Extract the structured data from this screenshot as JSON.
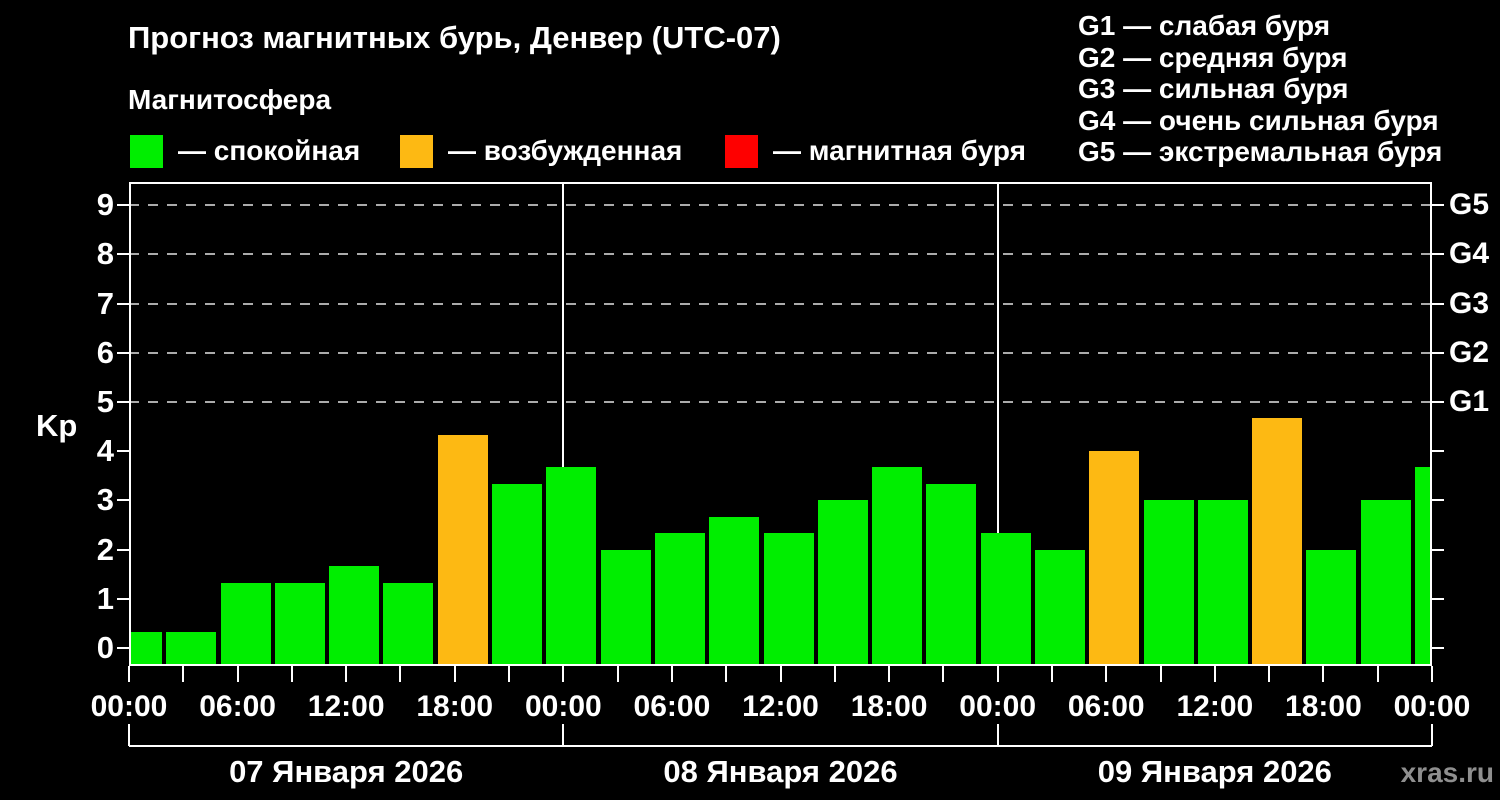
{
  "header": {
    "title": "Прогноз магнитных бурь, Денвер (UTC-07)",
    "subtitle": "Магнитосфера"
  },
  "activity_legend": [
    {
      "key": "quiet",
      "label": "— спокойная",
      "color": "#00ee00"
    },
    {
      "key": "excited",
      "label": "— возбужденная",
      "color": "#fdb913"
    },
    {
      "key": "storm",
      "label": "— магнитная буря",
      "color": "#fe0000"
    }
  ],
  "storm_scale_legend": [
    "G1 — слабая буря",
    "G2 — средняя буря",
    "G3 — сильная буря",
    "G4 — очень сильная буря",
    "G5 — экстремальная буря"
  ],
  "watermark": "xras.ru",
  "chart_data": {
    "type": "bar",
    "ylabel": "Kp",
    "ylim": [
      0,
      9
    ],
    "yticks": [
      0,
      1,
      2,
      3,
      4,
      5,
      6,
      7,
      8,
      9
    ],
    "gridlines_kp": [
      5,
      6,
      7,
      8,
      9
    ],
    "right_axis": [
      {
        "kp": 5,
        "label": "G1"
      },
      {
        "kp": 6,
        "label": "G2"
      },
      {
        "kp": 7,
        "label": "G3"
      },
      {
        "kp": 8,
        "label": "G4"
      },
      {
        "kp": 9,
        "label": "G5"
      }
    ],
    "x_tick_labels": [
      "00:00",
      "06:00",
      "12:00",
      "18:00",
      "00:00",
      "06:00",
      "12:00",
      "18:00",
      "00:00",
      "06:00",
      "12:00",
      "18:00",
      "00:00"
    ],
    "bar_interval_hours": 3,
    "colors": {
      "quiet": "#00ee00",
      "excited": "#fdb913",
      "storm": "#fe0000"
    },
    "days": [
      {
        "date": "07 Января 2026",
        "values": [
          0.33,
          0.33,
          1.33,
          1.33,
          1.67,
          1.33,
          4.33,
          3.33
        ],
        "levels": [
          "quiet",
          "quiet",
          "quiet",
          "quiet",
          "quiet",
          "quiet",
          "excited",
          "quiet"
        ]
      },
      {
        "date": "08 Января 2026",
        "values": [
          3.67,
          2.0,
          2.33,
          2.67,
          2.33,
          3.0,
          3.67,
          3.33
        ],
        "levels": [
          "quiet",
          "quiet",
          "quiet",
          "quiet",
          "quiet",
          "quiet",
          "quiet",
          "quiet"
        ]
      },
      {
        "date": "09 Января 2026",
        "values": [
          2.33,
          2.0,
          4.0,
          3.0,
          3.0,
          4.67,
          2.0,
          3.0
        ],
        "levels": [
          "quiet",
          "quiet",
          "excited",
          "quiet",
          "quiet",
          "excited",
          "quiet",
          "quiet"
        ]
      }
    ],
    "next_day_partial_bar": {
      "value": 3.67,
      "level": "quiet"
    }
  }
}
